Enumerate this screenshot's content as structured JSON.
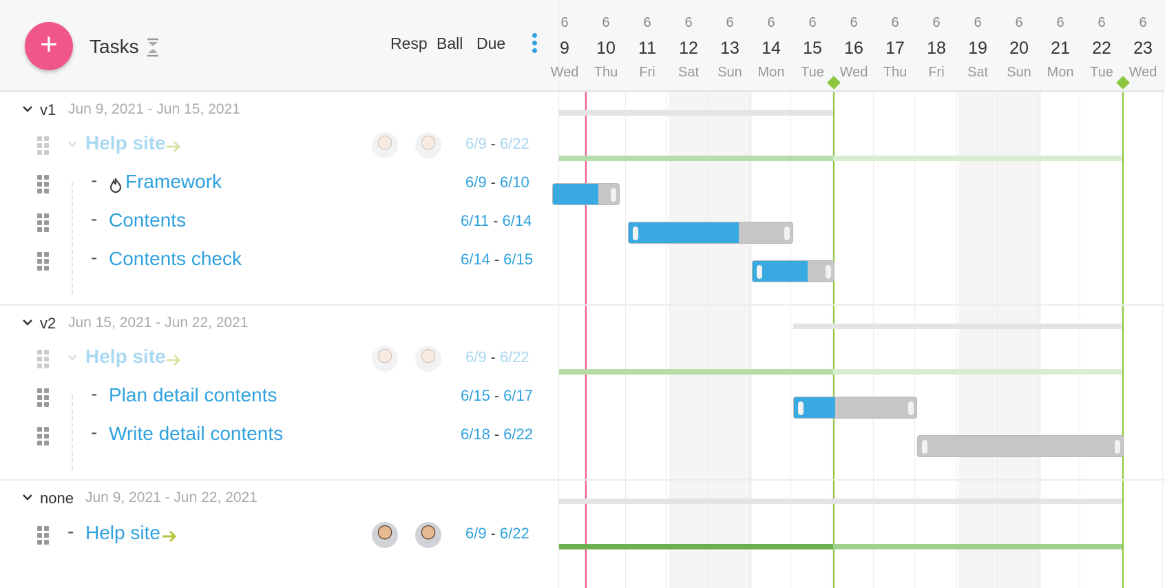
{
  "header": {
    "title": "Tasks",
    "add_label": "+",
    "columns": {
      "resp": "Resp",
      "ball": "Ball",
      "due": "Due"
    }
  },
  "timeline": {
    "days": [
      {
        "mon": "6",
        "num": "9",
        "dow": "Wed"
      },
      {
        "mon": "6",
        "num": "10",
        "dow": "Thu"
      },
      {
        "mon": "6",
        "num": "11",
        "dow": "Fri"
      },
      {
        "mon": "6",
        "num": "12",
        "dow": "Sat"
      },
      {
        "mon": "6",
        "num": "13",
        "dow": "Sun"
      },
      {
        "mon": "6",
        "num": "14",
        "dow": "Mon"
      },
      {
        "mon": "6",
        "num": "15",
        "dow": "Tue"
      },
      {
        "mon": "6",
        "num": "16",
        "dow": "Wed"
      },
      {
        "mon": "6",
        "num": "17",
        "dow": "Thu"
      },
      {
        "mon": "6",
        "num": "18",
        "dow": "Fri"
      },
      {
        "mon": "6",
        "num": "19",
        "dow": "Sat"
      },
      {
        "mon": "6",
        "num": "20",
        "dow": "Sun"
      },
      {
        "mon": "6",
        "num": "21",
        "dow": "Mon"
      },
      {
        "mon": "6",
        "num": "22",
        "dow": "Tue"
      },
      {
        "mon": "6",
        "num": "23",
        "dow": "Wed"
      }
    ]
  },
  "groups": [
    {
      "name": "v1",
      "range": "Jun 9, 2021 - Jun 15, 2021",
      "parent": {
        "name": "Help site",
        "start": "6/9",
        "end": "6/22"
      },
      "tasks": [
        {
          "name": "Framework",
          "start": "6/9",
          "end": "6/10"
        },
        {
          "name": "Contents",
          "start": "6/11",
          "end": "6/14"
        },
        {
          "name": "Contents check",
          "start": "6/14",
          "end": "6/15"
        }
      ]
    },
    {
      "name": "v2",
      "range": "Jun 15, 2021 - Jun 22, 2021",
      "parent": {
        "name": "Help site",
        "start": "6/9",
        "end": "6/22"
      },
      "tasks": [
        {
          "name": "Plan detail contents",
          "start": "6/15",
          "end": "6/17"
        },
        {
          "name": "Write detail contents",
          "start": "6/18",
          "end": "6/22"
        }
      ]
    },
    {
      "name": "none",
      "range": "Jun 9, 2021 - Jun 22, 2021",
      "tasks": [
        {
          "name": "Help site",
          "start": "6/9",
          "end": "6/22"
        }
      ]
    }
  ],
  "bar_progress": {
    "framework": 0.67,
    "contents": 0.67,
    "contents_check": 0.67,
    "plan_detail_contents": 0.33,
    "write_detail_contents": 0
  },
  "colors": {
    "accent": "#2fa1de",
    "add_button": "#f0568a",
    "today_line": "#f0568a",
    "milestone": "#8dc63f",
    "progress": "#39aae1",
    "bar_remaining": "#c6c6c6",
    "parent_bar": "#b6dca8",
    "parent_bar_done": "#6ab04c"
  },
  "icons": {
    "add": "plus-icon",
    "collapse": "collapse-vertical-icon",
    "menu": "vertical-dots-icon",
    "drag": "drag-handle-icon",
    "chevron": "chevron-down-icon",
    "fire": "fire-icon",
    "arrow": "arrow-right-icon"
  }
}
